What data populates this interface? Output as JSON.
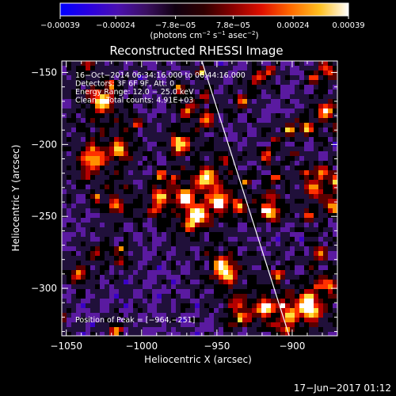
{
  "chart_data": {
    "type": "heatmap",
    "title": "Reconstructed RHESSI Image",
    "xlabel": "Heliocentric X (arcsec)",
    "ylabel": "Heliocentric Y (arcsec)",
    "xlim": [
      -1053,
      -870
    ],
    "ylim": [
      -333,
      -142
    ],
    "x_ticks": [
      -1050,
      -1000,
      -950,
      -900
    ],
    "x_tick_labels": [
      "−1050",
      "−1000",
      "−950",
      "−900"
    ],
    "y_ticks": [
      -150,
      -200,
      -250,
      -300
    ],
    "y_tick_labels": [
      "−150",
      "−200",
      "−250",
      "−300"
    ],
    "colorbar": {
      "min": -0.00039,
      "max": 0.00039,
      "ticks": [
        -0.00039,
        -0.00024,
        -7.8e-05,
        7.8e-05,
        0.00024,
        0.00039
      ],
      "tick_labels": [
        "−0.00039",
        "−0.00024",
        "−7.8e−05",
        "7.8e−05",
        "0.00024",
        "0.00039"
      ],
      "units_text": "(photons cm",
      "units_exp1": "−2",
      "units_mid": " s",
      "units_exp2": "−1",
      "units_end": " asec",
      "units_exp3": "−2",
      "units_close": ")"
    },
    "colors": [
      "#0000ff",
      "#3a00c8",
      "#5a1aa0",
      "#20103a",
      "#000000",
      "#5a0000",
      "#b40000",
      "#ff3000",
      "#ff9000",
      "#ffe040",
      "#ffffff"
    ],
    "annotations": [
      "16−Oct−2014 06:34:16.000 to 06:44:16.000",
      "Detectors: 3F 6F 9F, Att: 0",
      "Energy Range: 12.0 − 25.0 keV",
      "Clean    Total counts: 4.91E+03"
    ],
    "peak_label": "Position of Peak = [−964,−251]",
    "peak_position": [
      -964,
      -251
    ],
    "limb_line": [
      [
        -960,
        -142
      ],
      [
        -902,
        -333
      ]
    ]
  },
  "footer": {
    "timestamp": "17−Jun−2017 01:12"
  }
}
